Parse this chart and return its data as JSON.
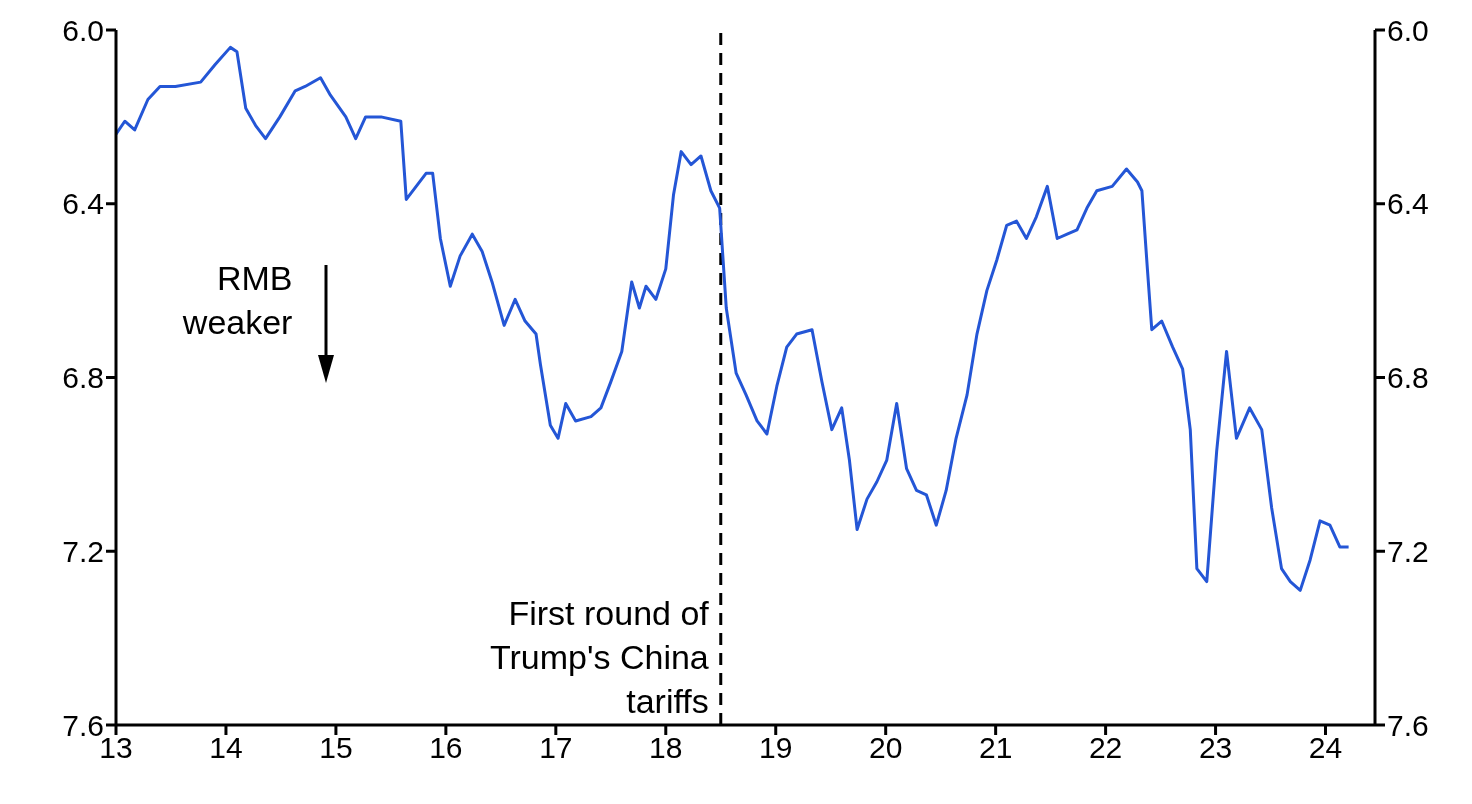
{
  "chart_data": {
    "type": "line",
    "x": [
      13.0,
      13.08,
      13.17,
      13.29,
      13.4,
      13.54,
      13.77,
      13.9,
      14.04,
      14.1,
      14.18,
      14.27,
      14.36,
      14.49,
      14.63,
      14.72,
      14.86,
      14.95,
      15.09,
      15.18,
      15.27,
      15.41,
      15.59,
      15.64,
      15.73,
      15.82,
      15.88,
      15.95,
      16.04,
      16.13,
      16.24,
      16.33,
      16.42,
      16.53,
      16.63,
      16.72,
      16.82,
      16.86,
      16.95,
      17.02,
      17.09,
      17.18,
      17.32,
      17.41,
      17.5,
      17.6,
      17.69,
      17.76,
      17.82,
      17.91,
      18.0,
      18.07,
      18.14,
      18.23,
      18.32,
      18.41,
      18.49,
      18.55,
      18.64,
      18.73,
      18.83,
      18.92,
      19.01,
      19.1,
      19.19,
      19.33,
      19.42,
      19.51,
      19.6,
      19.67,
      19.74,
      19.83,
      19.92,
      20.01,
      20.1,
      20.19,
      20.28,
      20.37,
      20.46,
      20.55,
      20.64,
      20.74,
      20.83,
      20.92,
      21.01,
      21.1,
      21.19,
      21.28,
      21.37,
      21.47,
      21.56,
      21.65,
      21.74,
      21.83,
      21.92,
      22.06,
      22.19,
      22.29,
      22.33,
      22.38,
      22.42,
      22.51,
      22.61,
      22.7,
      22.77,
      22.83,
      22.92,
      23.01,
      23.1,
      23.19,
      23.31,
      23.42,
      23.51,
      23.6,
      23.68,
      23.77,
      23.86,
      23.95,
      24.04,
      24.13,
      24.21
    ],
    "series": [
      {
        "color": "#2456d6",
        "values": [
          6.24,
          6.21,
          6.23,
          6.16,
          6.13,
          6.13,
          6.12,
          6.08,
          6.04,
          6.05,
          6.18,
          6.22,
          6.25,
          6.2,
          6.14,
          6.13,
          6.11,
          6.15,
          6.2,
          6.25,
          6.2,
          6.2,
          6.21,
          6.39,
          6.36,
          6.33,
          6.33,
          6.48,
          6.59,
          6.52,
          6.47,
          6.51,
          6.58,
          6.68,
          6.62,
          6.67,
          6.7,
          6.77,
          6.91,
          6.94,
          6.86,
          6.9,
          6.89,
          6.87,
          6.81,
          6.74,
          6.58,
          6.64,
          6.59,
          6.62,
          6.55,
          6.38,
          6.28,
          6.31,
          6.29,
          6.37,
          6.41,
          6.64,
          6.79,
          6.84,
          6.9,
          6.93,
          6.82,
          6.73,
          6.7,
          6.69,
          6.81,
          6.92,
          6.87,
          6.99,
          7.15,
          7.08,
          7.04,
          6.99,
          6.86,
          7.01,
          7.06,
          7.07,
          7.14,
          7.06,
          6.94,
          6.84,
          6.7,
          6.6,
          6.53,
          6.45,
          6.44,
          6.48,
          6.43,
          6.36,
          6.48,
          6.47,
          6.46,
          6.41,
          6.37,
          6.36,
          6.32,
          6.35,
          6.37,
          6.55,
          6.69,
          6.67,
          6.73,
          6.78,
          6.92,
          7.24,
          7.27,
          6.97,
          6.74,
          6.94,
          6.87,
          6.92,
          7.1,
          7.24,
          7.27,
          7.29,
          7.22,
          7.13,
          7.14,
          7.19,
          7.19
        ]
      }
    ],
    "xlim": [
      13,
      24.45
    ],
    "xticks": [
      13,
      14,
      15,
      16,
      17,
      18,
      19,
      20,
      21,
      22,
      23,
      24
    ],
    "ylim": [
      7.6,
      6.0
    ],
    "yticks": [
      {
        "value": 6.0,
        "label": "6.0"
      },
      6.4,
      6.8,
      7.2,
      7.6
    ],
    "y2lim": [
      7.6,
      6.0
    ],
    "y2ticks": [
      {
        "value": 6.0,
        "label": "6.0"
      },
      6.4,
      6.8,
      7.2,
      7.6
    ],
    "ref_lines": [
      {
        "axis": "x",
        "value": 18.5,
        "label": "First round of Trump's China tariffs",
        "line_style": "dashed",
        "color": "#000000"
      }
    ],
    "annotations": [
      "RMB weaker"
    ],
    "marker": "none",
    "line_style": "solid"
  }
}
